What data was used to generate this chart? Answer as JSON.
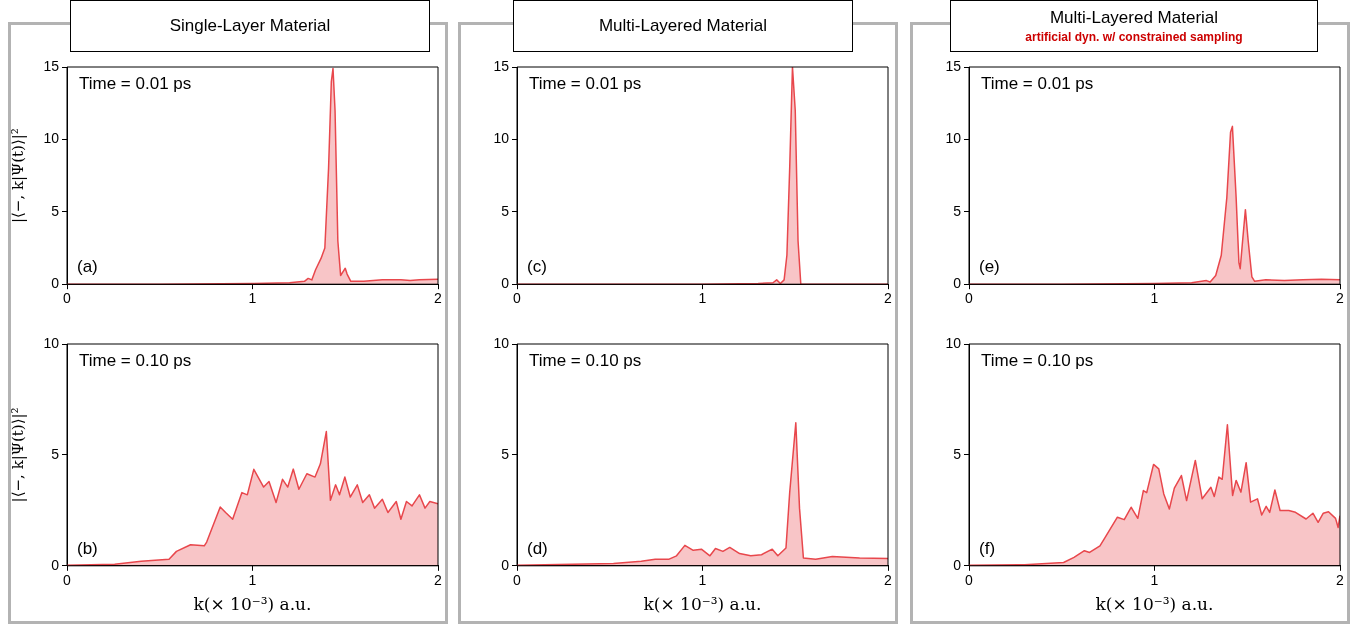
{
  "chart_data": [
    {
      "type": "area",
      "title": "Single-Layer Material",
      "ylabel": "|⟨−, k|Ψ(t)⟩|²",
      "annotations": [
        "Time = 0.01 ps",
        "(a)"
      ],
      "color": "#e8474c",
      "xlim": [
        0,
        2
      ],
      "xticks": [
        0,
        1,
        2
      ],
      "ylim": [
        0,
        15
      ],
      "yticks": [
        0,
        5,
        10,
        15
      ],
      "x": [
        0,
        0.5,
        1,
        1.2,
        1.28,
        1.3,
        1.32,
        1.34,
        1.37,
        1.39,
        1.41,
        1.425,
        1.434,
        1.445,
        1.46,
        1.475,
        1.49,
        1.5,
        1.51,
        1.53,
        1.6,
        1.7,
        1.8,
        1.85,
        1.9,
        2
      ],
      "values": [
        0,
        0,
        0.05,
        0.1,
        0.2,
        0.4,
        0.3,
        1.0,
        1.8,
        2.5,
        8,
        14,
        14.9,
        12,
        3,
        0.6,
        0.9,
        1.1,
        0.7,
        0.2,
        0.2,
        0.3,
        0.3,
        0.25,
        0.3,
        0.35
      ]
    },
    {
      "type": "area",
      "title": "Multi-Layered Material",
      "annotations": [
        "Time = 0.01 ps",
        "(c)"
      ],
      "color": "#e8474c",
      "xlim": [
        0,
        2
      ],
      "xticks": [
        0,
        1,
        2
      ],
      "ylim": [
        0,
        15
      ],
      "yticks": [
        0,
        5,
        10,
        15
      ],
      "x": [
        0,
        1,
        1.3,
        1.38,
        1.4,
        1.42,
        1.44,
        1.455,
        1.47,
        1.485,
        1.5,
        1.515,
        1.53,
        2
      ],
      "values": [
        0,
        0,
        0.05,
        0.1,
        0.3,
        0.05,
        0.3,
        2,
        8,
        15,
        12,
        3,
        0,
        0
      ]
    },
    {
      "type": "area",
      "title": "Multi-Layered Material",
      "subtitle": "artificial dyn. w/ constrained sampling",
      "annotations": [
        "Time = 0.01 ps",
        "(e)"
      ],
      "color": "#e8474c",
      "xlim": [
        0,
        2
      ],
      "xticks": [
        0,
        1,
        2
      ],
      "ylim": [
        0,
        15
      ],
      "yticks": [
        0,
        5,
        10,
        15
      ],
      "x": [
        0,
        0.5,
        1,
        1.2,
        1.28,
        1.3,
        1.33,
        1.36,
        1.39,
        1.41,
        1.42,
        1.44,
        1.455,
        1.462,
        1.475,
        1.49,
        1.505,
        1.525,
        1.54,
        1.6,
        1.7,
        1.8,
        1.9,
        2
      ],
      "values": [
        0,
        0,
        0.05,
        0.1,
        0.25,
        0.15,
        0.6,
        2,
        6,
        10.5,
        10.9,
        6,
        1.5,
        1.07,
        3,
        5.15,
        3,
        0.5,
        0.2,
        0.3,
        0.25,
        0.3,
        0.35,
        0.3
      ]
    },
    {
      "type": "area",
      "xlabel": "k(× 10⁻³) a.u.",
      "ylabel": "|⟨−, k|Ψ(t)⟩|²",
      "annotations": [
        "Time = 0.10 ps",
        "(b)"
      ],
      "color": "#e8474c",
      "xlim": [
        0,
        2
      ],
      "xticks": [
        0,
        1,
        2
      ],
      "ylim": [
        0,
        10
      ],
      "yticks": [
        0,
        5,
        10
      ],
      "x": [
        0,
        0.257,
        0.4,
        0.55,
        0.59,
        0.666,
        0.74,
        0.753,
        0.826,
        0.855,
        0.893,
        0.943,
        0.972,
        1.007,
        1.06,
        1.089,
        1.127,
        1.162,
        1.19,
        1.22,
        1.25,
        1.293,
        1.337,
        1.366,
        1.398,
        1.42,
        1.448,
        1.469,
        1.498,
        1.527,
        1.565,
        1.594,
        1.63,
        1.658,
        1.7,
        1.73,
        1.775,
        1.8,
        1.83,
        1.86,
        1.9,
        1.93,
        1.956,
        2
      ],
      "values": [
        0.03,
        0.07,
        0.2,
        0.3,
        0.65,
        0.95,
        0.9,
        1.07,
        2.65,
        2.4,
        2.1,
        3.3,
        3.2,
        4.35,
        3.55,
        3.8,
        2.85,
        3.9,
        3.55,
        4.36,
        3.45,
        4.15,
        4.0,
        4.6,
        6.05,
        2.95,
        3.65,
        3.2,
        4.0,
        3.1,
        3.65,
        2.85,
        3.2,
        2.6,
        3.0,
        2.4,
        2.9,
        2.1,
        2.9,
        2.7,
        3.2,
        2.6,
        2.9,
        2.8
      ]
    },
    {
      "type": "area",
      "xlabel": "k(× 10⁻³) a.u.",
      "annotations": [
        "Time = 0.10 ps",
        "(d)"
      ],
      "color": "#e8474c",
      "xlim": [
        0,
        2
      ],
      "xticks": [
        0,
        1,
        2
      ],
      "ylim": [
        0,
        10
      ],
      "yticks": [
        0,
        5,
        10
      ],
      "x": [
        0,
        0.52,
        0.67,
        0.745,
        0.82,
        0.86,
        0.905,
        0.95,
        0.994,
        1.04,
        1.07,
        1.11,
        1.147,
        1.2,
        1.26,
        1.318,
        1.376,
        1.406,
        1.45,
        1.47,
        1.503,
        1.523,
        1.544,
        1.61,
        1.7,
        1.847,
        2
      ],
      "values": [
        0.02,
        0.1,
        0.2,
        0.3,
        0.3,
        0.45,
        0.92,
        0.7,
        0.75,
        0.45,
        0.78,
        0.65,
        0.83,
        0.55,
        0.45,
        0.5,
        0.75,
        0.45,
        0.8,
        3.3,
        6.45,
        2.6,
        0.35,
        0.3,
        0.42,
        0.35,
        0.33
      ]
    },
    {
      "type": "area",
      "xlabel": "k(× 10⁻³) a.u.",
      "annotations": [
        "Time = 0.10 ps",
        "(f)"
      ],
      "color": "#e8474c",
      "xlim": [
        0,
        2
      ],
      "xticks": [
        0,
        1,
        2
      ],
      "ylim": [
        0,
        10
      ],
      "yticks": [
        0,
        5,
        10
      ],
      "x": [
        0,
        0.3,
        0.51,
        0.566,
        0.622,
        0.65,
        0.706,
        0.734,
        0.8,
        0.837,
        0.874,
        0.91,
        0.94,
        0.958,
        0.995,
        1.023,
        1.05,
        1.08,
        1.107,
        1.145,
        1.173,
        1.22,
        1.257,
        1.304,
        1.322,
        1.347,
        1.365,
        1.393,
        1.421,
        1.44,
        1.466,
        1.494,
        1.518,
        1.555,
        1.578,
        1.602,
        1.621,
        1.649,
        1.677,
        1.724,
        1.76,
        1.817,
        1.854,
        1.882,
        1.91,
        1.938,
        1.976,
        1.99,
        2
      ],
      "values": [
        0.03,
        0.05,
        0.15,
        0.38,
        0.68,
        0.6,
        0.9,
        1.28,
        2.19,
        2.08,
        2.64,
        2.14,
        3.39,
        3.3,
        4.57,
        4.37,
        3.24,
        2.56,
        3.5,
        4.07,
        2.94,
        4.75,
        3.02,
        3.54,
        3.12,
        4.0,
        3.9,
        6.36,
        3.17,
        3.85,
        3.32,
        4.65,
        2.87,
        3.02,
        2.29,
        2.68,
        2.41,
        3.42,
        2.49,
        2.49,
        2.41,
        2.11,
        2.37,
        1.96,
        2.37,
        2.44,
        2.14,
        1.73,
        2.26
      ]
    }
  ]
}
